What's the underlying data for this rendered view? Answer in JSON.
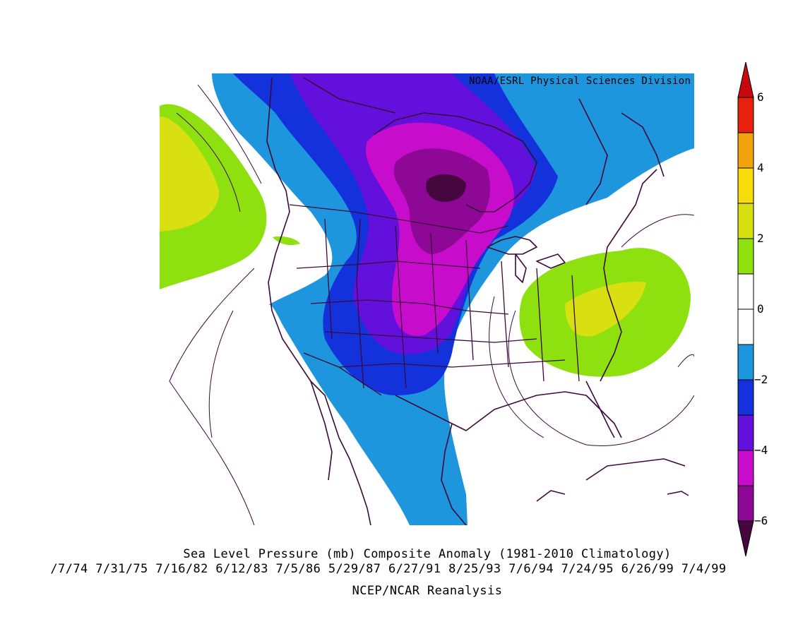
{
  "header": {
    "credit": "NOAA/ESRL Physical Sciences Division"
  },
  "footer": {
    "title": "Sea Level Pressure (mb) Composite Anomaly (1981-2010 Climatology)",
    "dates": "/7/74 7/31/75 7/16/82 6/12/83 7/5/86 5/29/87 6/27/91 8/25/93 7/6/94 7/24/95 6/26/99 7/4/99",
    "source": "NCEP/NCAR Reanalysis"
  },
  "colorbar": {
    "labels": [
      "6",
      "4",
      "2",
      "0",
      "-2",
      "-4",
      "-6"
    ],
    "levels": [
      {
        "range": "5 to 6",
        "color": "#e8200e"
      },
      {
        "range": "4 to 5",
        "color": "#f2a20a"
      },
      {
        "range": "3 to 4",
        "color": "#f8dc0a"
      },
      {
        "range": "2 to 3",
        "color": "#d8e012"
      },
      {
        "range": "1 to 2",
        "color": "#8ee00e"
      },
      {
        "range": "0 to 1",
        "color": "#ffffff"
      },
      {
        "range": "-1 to 0",
        "color": "#ffffff"
      },
      {
        "range": "-2 to -1",
        "color": "#1e96de"
      },
      {
        "range": "-3 to -2",
        "color": "#1432dc"
      },
      {
        "range": "-4 to -3",
        "color": "#6410dc"
      },
      {
        "range": "-5 to -4",
        "color": "#c80ccc"
      },
      {
        "range": "-6 to -5",
        "color": "#8e0896"
      }
    ],
    "low_end_color": "#46063e",
    "high_end_color": "#c8080e"
  },
  "colors": {
    "outline": "#3a0a3a",
    "contour": "#3a0a3a"
  }
}
